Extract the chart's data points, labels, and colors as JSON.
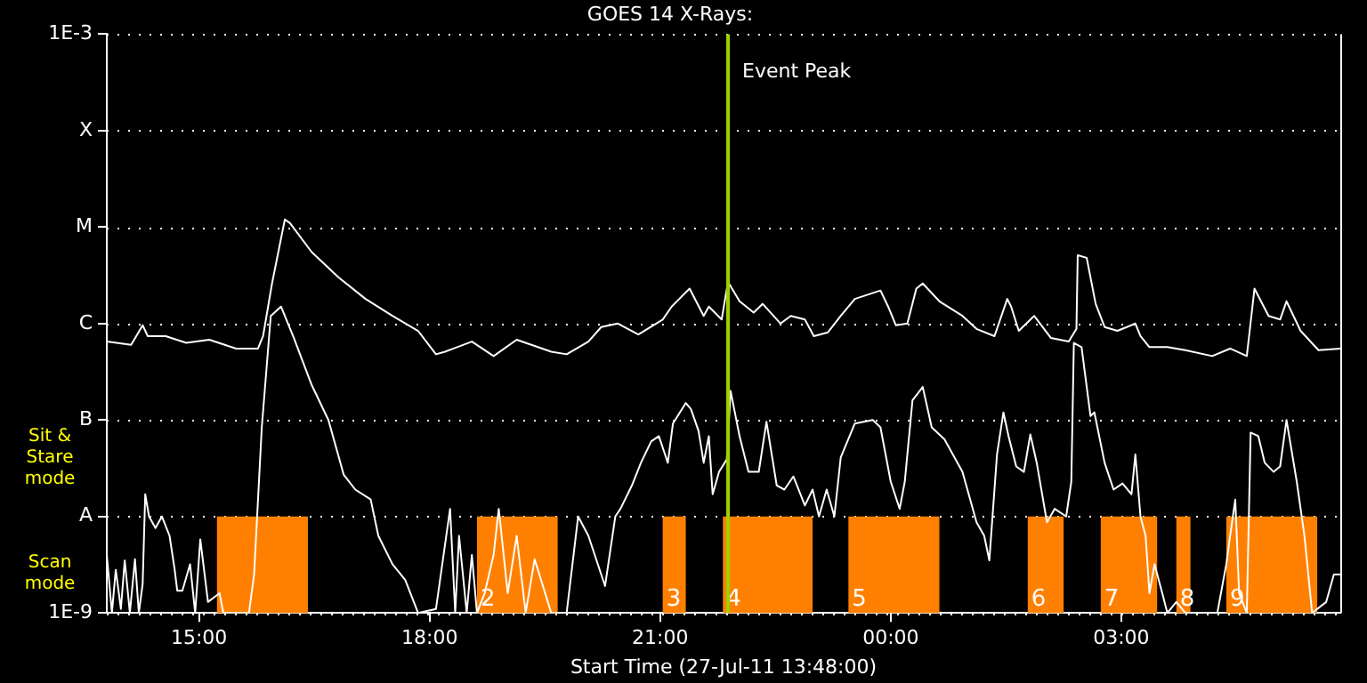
{
  "chart_data": {
    "type": "line",
    "title": "GOES 14 X-Rays:",
    "xlabel": "Start Time (27-Jul-11 13:48:00)",
    "log": "y",
    "grid": "y",
    "marker": "none",
    "line_style": "solid",
    "xlim": [
      "--07-27T13:48",
      "--07-28T05:51"
    ],
    "xticks": [
      {
        "value": "--07-27T15:00",
        "label": "15:00"
      },
      {
        "value": "--07-27T18:00",
        "label": "18:00"
      },
      {
        "value": "--07-27T21:00",
        "label": "21:00"
      },
      {
        "value": "--07-28T00:00",
        "label": "00:00"
      },
      {
        "value": "--07-28T03:00",
        "label": "03:00"
      }
    ],
    "ylim": [
      1e-09,
      0.001
    ],
    "yticks": [
      {
        "value": 1e-09,
        "label": "1E-9"
      },
      {
        "value": 1e-08,
        "label": "A"
      },
      {
        "value": 1e-07,
        "label": "B"
      },
      {
        "value": 1e-06,
        "label": "C"
      },
      {
        "value": 1e-05,
        "label": "M"
      },
      {
        "value": 0.0001,
        "label": "X"
      },
      {
        "value": 0.001,
        "label": "1E-3"
      }
    ],
    "series": [
      {
        "color": "#ffffff",
        "x": [
          "--07-27T13:48",
          "--07-27T14:07",
          "--07-27T14:16",
          "--07-27T14:20",
          "--07-27T14:34",
          "--07-27T14:50",
          "--07-27T15:08",
          "--07-27T15:29",
          "--07-27T15:46",
          "--07-27T15:50",
          "--07-27T15:57",
          "--07-27T16:07",
          "--07-27T16:11",
          "--07-27T16:28",
          "--07-27T16:49",
          "--07-27T17:10",
          "--07-27T17:31",
          "--07-27T17:51",
          "--07-27T18:05",
          "--07-27T18:12",
          "--07-27T18:33",
          "--07-27T18:50",
          "--07-27T19:08",
          "--07-27T19:35",
          "--07-27T19:47",
          "--07-27T20:04",
          "--07-27T20:14",
          "--07-27T20:27",
          "--07-27T20:43",
          "--07-27T21:02",
          "--07-27T21:09",
          "--07-27T21:23",
          "--07-27T21:34",
          "--07-27T21:38",
          "--07-27T21:48",
          "--07-27T21:53",
          "--07-27T22:02",
          "--07-27T22:13",
          "--07-27T22:20",
          "--07-27T22:34",
          "--07-27T22:42",
          "--07-27T22:53",
          "--07-27T23:00",
          "--07-27T23:11",
          "--07-27T23:21",
          "--07-27T23:32",
          "--07-27T23:52",
          "--07-27T23:58",
          "--07-28T00:04",
          "--07-28T00:13",
          "--07-28T00:20",
          "--07-28T00:25",
          "--07-28T00:38",
          "--07-28T00:56",
          "--07-28T01:07",
          "--07-28T01:21",
          "--07-28T01:31",
          "--07-28T01:34",
          "--07-28T01:40",
          "--07-28T01:52",
          "--07-28T02:05",
          "--07-28T02:19",
          "--07-28T02:25",
          "--07-28T02:26",
          "--07-28T02:33",
          "--07-28T02:40",
          "--07-28T02:47",
          "--07-28T02:57",
          "--07-28T03:11",
          "--07-28T03:15",
          "--07-28T03:22",
          "--07-28T03:36",
          "--07-28T03:50",
          "--07-28T04:11",
          "--07-28T04:25",
          "--07-28T04:38",
          "--07-28T04:44",
          "--07-28T04:55",
          "--07-28T05:04",
          "--07-28T05:09",
          "--07-28T05:20",
          "--07-28T05:34",
          "--07-28T05:51"
        ],
        "values": [
          6.5e-07,
          6e-07,
          9.6e-07,
          7.4e-07,
          7.4e-07,
          6.3e-07,
          6.8e-07,
          5.5e-07,
          5.5e-07,
          7.4e-07,
          2.6e-06,
          1.2e-05,
          1.1e-05,
          5.5e-06,
          3e-06,
          1.8e-06,
          1.2e-06,
          8.4e-07,
          4.8e-07,
          5.1e-07,
          6.5e-07,
          4.6e-07,
          6.8e-07,
          5.1e-07,
          4.8e-07,
          6.5e-07,
          9.2e-07,
          1e-06,
          7.7e-07,
          1.1e-06,
          1.5e-06,
          2.3e-06,
          1.2e-06,
          1.5e-06,
          1.1e-06,
          2.7e-06,
          1.7e-06,
          1.3e-06,
          1.6e-06,
          1e-06,
          1.2e-06,
          1.1e-06,
          7.4e-07,
          8.1e-07,
          1.2e-06,
          1.8e-06,
          2.2e-06,
          1.5e-06,
          9.6e-07,
          1e-06,
          2.3e-06,
          2.6e-06,
          1.7e-06,
          1.2e-06,
          8.8e-07,
          7.4e-07,
          1.8e-06,
          1.5e-06,
          8.4e-07,
          1.2e-06,
          7.1e-07,
          6.5e-07,
          8.8e-07,
          5.1e-06,
          4.8e-06,
          1.6e-06,
          9.2e-07,
          8.4e-07,
          1e-06,
          7.4e-07,
          5.7e-07,
          5.7e-07,
          5.3e-07,
          4.6e-07,
          5.5e-07,
          4.6e-07,
          2.3e-06,
          1.2e-06,
          1.1e-06,
          1.7e-06,
          8.4e-07,
          5.3e-07,
          5.5e-07
        ]
      },
      {
        "color": "#ffffff",
        "x": [
          "--07-27T13:48",
          "--07-27T13:52",
          "--07-27T13:55",
          "--07-27T13:59",
          "--07-27T14:02",
          "--07-27T14:06",
          "--07-27T14:10",
          "--07-27T14:13",
          "--07-27T14:16",
          "--07-27T14:18",
          "--07-27T14:21",
          "--07-27T14:26",
          "--07-27T14:31",
          "--07-27T14:37",
          "--07-27T14:41",
          "--07-27T14:43",
          "--07-27T14:47",
          "--07-27T14:53",
          "--07-27T14:57",
          "--07-27T15:01",
          "--07-27T15:07",
          "--07-27T15:16",
          "--07-27T15:19",
          "--07-27T15:39",
          "--07-27T15:43",
          "--07-27T15:49",
          "--07-27T15:56",
          "--07-27T16:04",
          "--07-27T16:14",
          "--07-27T16:28",
          "--07-27T16:41",
          "--07-27T16:53",
          "--07-27T17:02",
          "--07-27T17:14",
          "--07-27T17:20",
          "--07-27T17:31",
          "--07-27T17:41",
          "--07-27T17:51",
          "--07-27T18:05",
          "--07-27T18:16",
          "--07-27T18:20",
          "--07-27T18:23",
          "--07-27T18:29",
          "--07-27T18:33",
          "--07-27T18:37",
          "--07-27T18:43",
          "--07-27T18:50",
          "--07-27T18:54",
          "--07-27T19:01",
          "--07-27T19:08",
          "--07-27T19:15",
          "--07-27T19:22",
          "--07-27T19:35",
          "--07-27T19:47",
          "--07-27T19:56",
          "--07-27T20:04",
          "--07-27T20:17",
          "--07-27T20:25",
          "--07-27T20:29",
          "--07-27T20:38",
          "--07-27T20:45",
          "--07-27T20:53",
          "--07-27T20:59",
          "--07-27T21:06",
          "--07-27T21:10",
          "--07-27T21:20",
          "--07-27T21:24",
          "--07-27T21:30",
          "--07-27T21:34",
          "--07-27T21:38",
          "--07-27T21:41",
          "--07-27T21:46",
          "--07-27T21:52",
          "--07-27T21:55",
          "--07-27T22:02",
          "--07-27T22:09",
          "--07-27T22:17",
          "--07-27T22:23",
          "--07-27T22:31",
          "--07-27T22:37",
          "--07-27T22:44",
          "--07-27T22:53",
          "--07-27T22:59",
          "--07-27T23:04",
          "--07-27T23:10",
          "--07-27T23:16",
          "--07-27T23:21",
          "--07-27T23:32",
          "--07-27T23:46",
          "--07-27T23:52",
          "--07-28T00:00",
          "--07-28T00:07",
          "--07-28T00:11",
          "--07-28T00:17",
          "--07-28T00:25",
          "--07-28T00:32",
          "--07-28T00:42",
          "--07-28T00:56",
          "--07-28T01:07",
          "--07-28T01:13",
          "--07-28T01:17",
          "--07-28T01:23",
          "--07-28T01:28",
          "--07-28T01:32",
          "--07-28T01:38",
          "--07-28T01:44",
          "--07-28T01:49",
          "--07-28T01:54",
          "--07-28T02:02",
          "--07-28T02:08",
          "--07-28T02:17",
          "--07-28T02:21",
          "--07-28T02:23",
          "--07-28T02:29",
          "--07-28T02:36",
          "--07-28T02:39",
          "--07-28T02:47",
          "--07-28T02:54",
          "--07-28T03:01",
          "--07-28T03:08",
          "--07-28T03:11",
          "--07-28T03:15",
          "--07-28T03:19",
          "--07-28T03:22",
          "--07-28T03:26",
          "--07-28T03:32",
          "--07-28T03:36",
          "--07-28T03:43",
          "--07-28T03:50",
          "--07-28T04:15",
          "--07-28T04:22",
          "--07-28T04:25",
          "--07-28T04:29",
          "--07-28T04:32",
          "--07-28T04:38",
          "--07-28T04:41",
          "--07-28T04:47",
          "--07-28T04:52",
          "--07-28T04:59",
          "--07-28T05:04",
          "--07-28T05:09",
          "--07-28T05:17",
          "--07-28T05:23",
          "--07-28T05:29",
          "--07-28T05:40",
          "--07-28T05:46",
          "--07-28T05:51"
        ],
        "values": [
          4e-09,
          1e-09,
          2.8e-09,
          1.1e-09,
          3.5e-09,
          1e-09,
          3.6e-09,
          1e-09,
          2e-09,
          1.7e-08,
          1e-08,
          7.6e-09,
          1e-08,
          6.3e-09,
          2.8e-09,
          1.7e-09,
          1.7e-09,
          3.2e-09,
          1e-09,
          5.8e-09,
          1.3e-09,
          1.6e-09,
          1e-09,
          1e-09,
          2.5e-09,
          8.4e-08,
          1.2e-06,
          1.5e-06,
          7.1e-07,
          2.3e-07,
          1e-07,
          2.7e-08,
          1.9e-08,
          1.5e-08,
          6.3e-09,
          3.2e-09,
          2.2e-09,
          1e-09,
          1.1e-09,
          1.2e-08,
          1e-09,
          6.3e-09,
          1e-09,
          4e-09,
          1e-09,
          1.6e-09,
          4e-09,
          1.2e-08,
          1.6e-09,
          6.3e-09,
          1e-09,
          3.6e-09,
          1e-09,
          1e-09,
          1e-08,
          6.3e-09,
          1.9e-09,
          1e-08,
          1.2e-08,
          2.1e-08,
          3.6e-08,
          6e-08,
          6.8e-08,
          3.6e-08,
          9.2e-08,
          1.5e-07,
          1.3e-07,
          7.7e-08,
          3.6e-08,
          6.8e-08,
          1.7e-08,
          2.9e-08,
          3.9e-08,
          2e-07,
          6.8e-08,
          2.9e-08,
          2.9e-08,
          9.6e-08,
          2.1e-08,
          1.9e-08,
          2.6e-08,
          1.3e-08,
          1.9e-08,
          1e-08,
          1.9e-08,
          1e-08,
          4.1e-08,
          9.2e-08,
          1e-07,
          8.4e-08,
          2.3e-08,
          1.2e-08,
          2.3e-08,
          1.6e-07,
          2.2e-07,
          8.4e-08,
          6.3e-08,
          2.9e-08,
          8.7e-09,
          6.3e-09,
          3.5e-09,
          4.4e-08,
          1.2e-07,
          6.8e-08,
          3.3e-08,
          2.9e-08,
          7.1e-08,
          3.6e-08,
          8.7e-09,
          1.2e-08,
          1e-08,
          2.3e-08,
          6.3e-07,
          5.7e-07,
          1.1e-07,
          1.2e-07,
          3.6e-08,
          1.9e-08,
          2.2e-08,
          1.7e-08,
          4.4e-08,
          1e-08,
          6.3e-09,
          1.6e-09,
          3.2e-09,
          1.6e-09,
          1e-09,
          1.3e-09,
          1e-09,
          1e-09,
          3.2e-09,
          6.3e-09,
          1.5e-08,
          1.6e-09,
          1e-09,
          7.4e-08,
          6.8e-08,
          3.6e-08,
          2.9e-08,
          3.3e-08,
          1e-07,
          2.3e-08,
          6.3e-09,
          1e-09,
          1.3e-09,
          2.5e-09,
          2.5e-09
        ]
      }
    ],
    "ref_lines": [
      {
        "axis": "x",
        "value": "--07-27T21:53",
        "label": "Event Peak",
        "color": "#a0d000"
      }
    ],
    "bands": [
      {
        "axis": "x",
        "from": "--07-27T15:14",
        "to": "--07-27T16:25",
        "color": "#ff8000"
      },
      {
        "axis": "x",
        "from": "--07-27T18:37",
        "to": "--07-27T19:40",
        "label": "2",
        "color": "#ff8000"
      },
      {
        "axis": "x",
        "from": "--07-27T21:02",
        "to": "--07-27T21:20",
        "label": "3",
        "color": "#ff8000"
      },
      {
        "axis": "x",
        "from": "--07-27T21:49",
        "to": "--07-27T22:59",
        "label": "4",
        "color": "#ff8000"
      },
      {
        "axis": "x",
        "from": "--07-27T23:27",
        "to": "--07-28T00:38",
        "label": "5",
        "color": "#ff8000"
      },
      {
        "axis": "x",
        "from": "--07-28T01:47",
        "to": "--07-28T02:15",
        "label": "6",
        "color": "#ff8000"
      },
      {
        "axis": "x",
        "from": "--07-28T02:44",
        "to": "--07-28T03:28",
        "label": "7",
        "color": "#ff8000"
      },
      {
        "axis": "x",
        "from": "--07-28T03:43",
        "to": "--07-28T03:54",
        "label": "8",
        "color": "#ff8000"
      },
      {
        "axis": "x",
        "from": "--07-28T04:22",
        "to": "--07-28T05:33",
        "label": "9",
        "color": "#ff8000"
      }
    ],
    "annotations": [
      "Sit & Stare mode",
      "Scan mode"
    ]
  }
}
